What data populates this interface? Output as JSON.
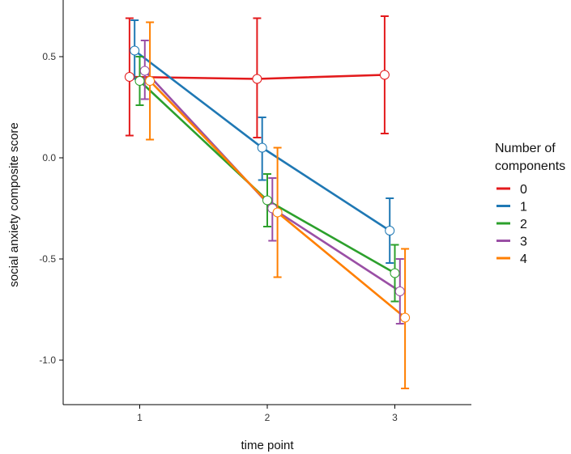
{
  "chart_data": {
    "type": "line",
    "title": "",
    "xlabel": "time point",
    "ylabel": "social anxiety composite score",
    "x": [
      1,
      2,
      3
    ],
    "x_tick_labels": [
      "1",
      "2",
      "3"
    ],
    "y_ticks": [
      0.5,
      0.0,
      -0.5,
      -1.0
    ],
    "y_tick_labels": [
      "0.5",
      "0.0",
      "-0.5",
      "-1.0"
    ],
    "xlim": [
      0.4,
      3.6
    ],
    "ylim": [
      -1.22,
      0.78
    ],
    "legend": {
      "title_line1": "Number of",
      "title_line2": "components",
      "placement": "right"
    },
    "series": [
      {
        "name": "0",
        "color": "#e31a1c",
        "offset": -0.08,
        "values": [
          0.4,
          0.39,
          0.41
        ],
        "lower": [
          0.11,
          0.1,
          0.12
        ],
        "upper": [
          0.69,
          0.69,
          0.7
        ]
      },
      {
        "name": "1",
        "color": "#1f78b4",
        "offset": -0.04,
        "values": [
          0.53,
          0.05,
          -0.36
        ],
        "lower": [
          0.39,
          -0.11,
          -0.52
        ],
        "upper": [
          0.68,
          0.2,
          -0.2
        ]
      },
      {
        "name": "2",
        "color": "#2ca02c",
        "offset": 0.0,
        "values": [
          0.38,
          -0.21,
          -0.57
        ],
        "lower": [
          0.26,
          -0.34,
          -0.71
        ],
        "upper": [
          0.5,
          -0.08,
          -0.43
        ]
      },
      {
        "name": "3",
        "color": "#9a4fa5",
        "offset": 0.04,
        "values": [
          0.43,
          -0.25,
          -0.66
        ],
        "lower": [
          0.29,
          -0.41,
          -0.82
        ],
        "upper": [
          0.58,
          -0.1,
          -0.5
        ]
      },
      {
        "name": "4",
        "color": "#ff7f00",
        "offset": 0.08,
        "values": [
          0.38,
          -0.27,
          -0.79
        ],
        "lower": [
          0.09,
          -0.59,
          -1.14
        ],
        "upper": [
          0.67,
          0.05,
          -0.45
        ]
      }
    ]
  }
}
